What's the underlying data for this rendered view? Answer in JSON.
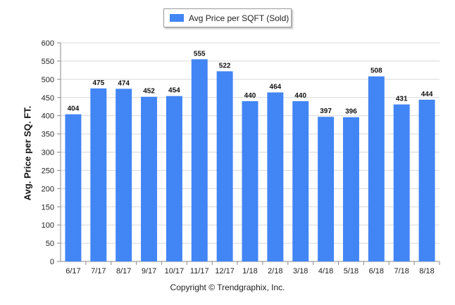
{
  "legend": {
    "label": "Avg Price per SQFT (Sold)",
    "color": "#4285f4"
  },
  "footer": {
    "copyright": "Copyright © Trendgraphix, Inc."
  },
  "chart_data": {
    "type": "bar",
    "categories": [
      "6/17",
      "7/17",
      "8/17",
      "9/17",
      "10/17",
      "11/17",
      "12/17",
      "1/18",
      "2/18",
      "3/18",
      "4/18",
      "5/18",
      "6/18",
      "7/18",
      "8/18"
    ],
    "series": [
      {
        "name": "Avg Price per SQFT (Sold)",
        "values": [
          404,
          475,
          474,
          452,
          454,
          555,
          522,
          440,
          464,
          440,
          397,
          396,
          508,
          431,
          444
        ]
      }
    ],
    "title": "",
    "xlabel": "",
    "ylabel": "Avg. Price per SQ. FT.",
    "ylim": [
      0,
      600
    ],
    "yticks": [
      0,
      50,
      100,
      150,
      200,
      250,
      300,
      350,
      400,
      450,
      500,
      550,
      600
    ],
    "grid": true,
    "legend_position": "top-center",
    "data_labels": true,
    "bar_color": "#4285f4"
  }
}
